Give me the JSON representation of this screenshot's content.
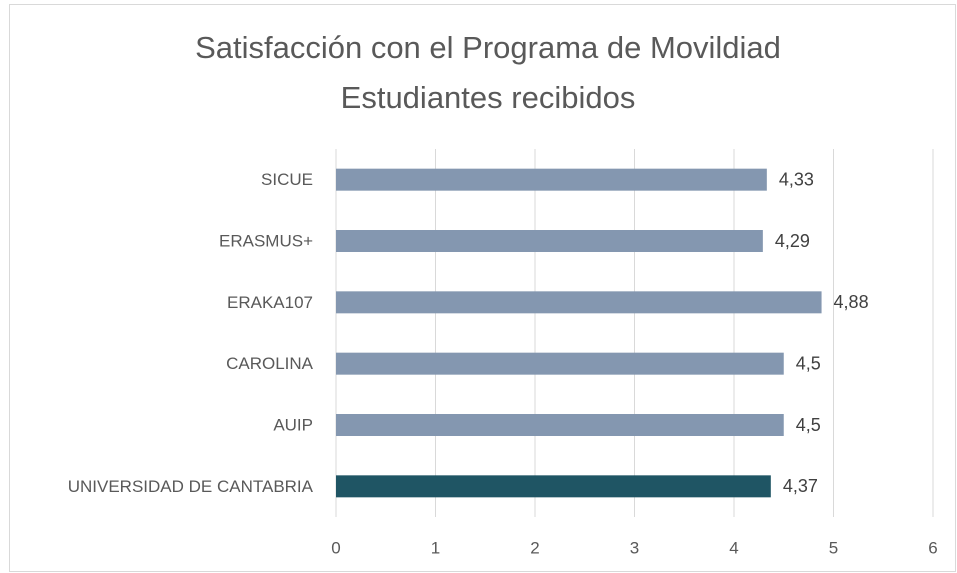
{
  "chart_data": {
    "type": "hbar",
    "title": "Satisfacción con el Programa de Movildiad",
    "subtitle": "Estudiantes recibidos",
    "categories": [
      "SICUE",
      "ERASMUS+",
      "ERAKA107",
      "CAROLINA",
      "AUIP",
      "UNIVERSIDAD DE CANTABRIA"
    ],
    "values": [
      4.33,
      4.29,
      4.88,
      4.5,
      4.5,
      4.37
    ],
    "value_labels": [
      "4,33",
      "4,29",
      "4,88",
      "4,5",
      "4,5",
      "4,37"
    ],
    "colors": [
      "#8497b0",
      "#8497b0",
      "#8497b0",
      "#8497b0",
      "#8497b0",
      "#1f5564"
    ],
    "xlim": [
      0,
      6
    ],
    "xticks": [
      0,
      1,
      2,
      3,
      4,
      5,
      6
    ],
    "grid": true
  }
}
